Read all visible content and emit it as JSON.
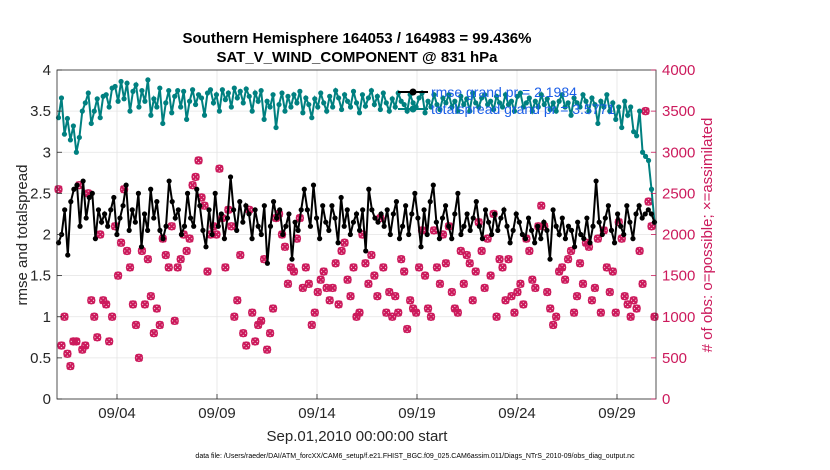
{
  "chart_data": {
    "type": "line",
    "title": [
      "Southern Hemisphere 164053 / 164983 = 99.436%",
      "SAT_V_WIND_COMPONENT @ 831 hPa"
    ],
    "xlabel": "Sep.01,2010 00:00:00 start",
    "ylabel_left": "rmse and totalspread",
    "ylabel_right": "# of obs: o=possible; ×=assimilated",
    "x_ticks": [
      {
        "day": 4,
        "label": "09/04"
      },
      {
        "day": 9,
        "label": "09/09"
      },
      {
        "day": 14,
        "label": "09/14"
      },
      {
        "day": 19,
        "label": "09/19"
      },
      {
        "day": 24,
        "label": "09/24"
      },
      {
        "day": 29,
        "label": "09/29"
      }
    ],
    "xlim": [
      1.0,
      30.95
    ],
    "ylim_left": [
      0,
      4
    ],
    "ylim_right": [
      0,
      4000
    ],
    "yticks_left": [
      "0",
      "0.5",
      "1",
      "1.5",
      "2",
      "2.5",
      "3",
      "3.5",
      "4"
    ],
    "yticks_right": [
      "0",
      "500",
      "1000",
      "1500",
      "2000",
      "2500",
      "3000",
      "3500",
      "4000"
    ],
    "legend": {
      "position": "top-right",
      "entries": [
        "rmse grand pr = 2.1984",
        "totalspread grand pr = 3.5771"
      ]
    },
    "colors": {
      "rmse": "#000000",
      "spread": "#008080",
      "obs": "#cc1a5c",
      "legend_text": "#1a5ee8"
    },
    "footnote": "data file: /Users/raeder/DAI/ATM_forcXX/CAM6_setup/f.e21.FHIST_BGC.f09_025.CAM6assim.011/Diags_NTrS_2010-09/obs_diag_output.nc",
    "series": [
      {
        "name": "rmse",
        "color": "#000000",
        "values": [
          1.9,
          2.0,
          2.3,
          1.75,
          2.4,
          2.55,
          2.6,
          2.1,
          2.65,
          2.2,
          2.45,
          2.5,
          1.95,
          2.3,
          2.15,
          2.25,
          2.1,
          2.3,
          2.45,
          2.0,
          2.2,
          2.35,
          2.6,
          2.05,
          2.3,
          2.15,
          2.5,
          1.85,
          2.25,
          2.05,
          2.55,
          2.2,
          2.4,
          2.05,
          1.95,
          2.1,
          2.65,
          2.4,
          2.2,
          2.3,
          2.0,
          2.1,
          2.5,
          2.2,
          2.1,
          2.55,
          2.35,
          2.05,
          1.85,
          2.3,
          2.0,
          2.5,
          2.1,
          2.25,
          1.95,
          2.2,
          2.7,
          2.3,
          2.05,
          2.4,
          2.15,
          2.35,
          2.25,
          1.95,
          2.3,
          2.1,
          2.0,
          2.35,
          1.65,
          2.1,
          2.4,
          2.2,
          2.3,
          2.0,
          2.1,
          2.25,
          1.7,
          2.15,
          2.05,
          2.3,
          2.55,
          2.3,
          2.1,
          2.6,
          2.2,
          1.95,
          2.35,
          2.15,
          2.05,
          2.35,
          2.2,
          1.9,
          2.45,
          2.1,
          2.3,
          2.0,
          2.15,
          2.25,
          2.05,
          2.3,
          1.8,
          2.55,
          2.3,
          2.2,
          2.15,
          2.25,
          2.1,
          2.3,
          2.0,
          2.25,
          2.4,
          1.95,
          2.1,
          2.35,
          2.0,
          2.25,
          2.5,
          2.2,
          1.85,
          2.3,
          2.0,
          2.4,
          2.6,
          2.15,
          1.95,
          2.2,
          2.35,
          2.1,
          1.95,
          2.25,
          2.5,
          2.0,
          2.1,
          2.25,
          2.05,
          2.2,
          2.4,
          2.1,
          1.95,
          2.3,
          2.15,
          2.0,
          2.25,
          2.05,
          2.2,
          2.3,
          2.1,
          1.9,
          2.05,
          2.25,
          2.15,
          2.0,
          1.95,
          2.2,
          2.05,
          1.9,
          2.1,
          1.95,
          2.15,
          2.05,
          1.7,
          2.3,
          2.1,
          2.0,
          2.2,
          1.95,
          2.1,
          2.05,
          1.85,
          2.15,
          2.0,
          1.95,
          2.2,
          1.9,
          2.1,
          2.65,
          2.15,
          2.0,
          2.2,
          2.35,
          2.05,
          1.9,
          2.25,
          2.1,
          2.0,
          2.35,
          2.15,
          1.95,
          2.25,
          2.35,
          2.2,
          2.25,
          2.3,
          2.25,
          2.15
        ]
      },
      {
        "name": "totalspread",
        "color": "#008080",
        "values": [
          3.42,
          3.66,
          3.22,
          3.41,
          3.15,
          3.32,
          3.0,
          3.18,
          3.5,
          3.6,
          3.72,
          3.35,
          3.5,
          3.65,
          3.42,
          3.68,
          3.7,
          3.55,
          3.78,
          3.8,
          3.62,
          3.86,
          3.65,
          3.84,
          3.5,
          3.74,
          3.82,
          3.55,
          3.75,
          3.62,
          3.88,
          3.45,
          3.65,
          3.55,
          3.78,
          3.35,
          3.6,
          3.75,
          3.48,
          3.68,
          3.75,
          3.55,
          3.74,
          3.4,
          3.62,
          3.76,
          3.58,
          3.7,
          3.66,
          3.45,
          3.72,
          3.76,
          3.6,
          3.7,
          3.5,
          3.76,
          3.64,
          3.72,
          3.55,
          3.78,
          3.66,
          3.74,
          3.6,
          3.77,
          3.68,
          3.5,
          3.72,
          3.62,
          3.75,
          3.4,
          3.62,
          3.55,
          3.7,
          3.3,
          3.58,
          3.72,
          3.5,
          3.68,
          3.55,
          3.7,
          3.6,
          3.74,
          3.48,
          3.66,
          3.58,
          3.42,
          3.65,
          3.55,
          3.72,
          3.6,
          3.5,
          3.68,
          3.55,
          3.75,
          3.66,
          3.52,
          3.7,
          3.62,
          3.55,
          3.74,
          3.6,
          3.48,
          3.7,
          3.56,
          3.66,
          3.75,
          3.58,
          3.68,
          3.52,
          3.72,
          3.6,
          3.5,
          3.65,
          3.55,
          3.72,
          3.62,
          3.58,
          3.5,
          3.7,
          3.6,
          3.55,
          3.66,
          3.72,
          3.48,
          3.62,
          3.55,
          3.7,
          3.58,
          3.52,
          3.66,
          3.6,
          3.7,
          3.55,
          3.62,
          3.5,
          3.68,
          3.58,
          3.65,
          3.5,
          3.72,
          3.6,
          3.55,
          3.66,
          3.7,
          3.58,
          3.62,
          3.52,
          3.68,
          3.6,
          3.55,
          3.7,
          3.58,
          3.62,
          3.5,
          3.68,
          3.72,
          3.55,
          3.6,
          3.66,
          3.5,
          3.62,
          3.55,
          3.7,
          3.58,
          3.65,
          3.52,
          3.6,
          3.5,
          3.62,
          3.7,
          3.55,
          3.6,
          3.45,
          3.66,
          3.6,
          3.55,
          3.7,
          3.62,
          3.5,
          3.66,
          3.58,
          3.35,
          3.62,
          3.55,
          3.7,
          3.5,
          3.6,
          3.4,
          3.55,
          3.3,
          3.62,
          3.45,
          3.55,
          3.25,
          3.2,
          3.5,
          3.0,
          2.95,
          2.9,
          2.55,
          2.15
        ]
      },
      {
        "name": "obs_possible",
        "color": "#cc1a5c",
        "values": [
          2550,
          650,
          1000,
          550,
          400,
          700,
          700,
          2600,
          600,
          650,
          2500,
          1200,
          1000,
          750,
          2000,
          1200,
          1150,
          700,
          1000,
          2100,
          1500,
          1900,
          2550,
          1800,
          1600,
          1150,
          900,
          500,
          1800,
          1150,
          1700,
          1250,
          800,
          1100,
          900,
          1950,
          1750,
          1600,
          2100,
          950,
          1600,
          1700,
          2000,
          1800,
          1950,
          2600,
          2700,
          2900,
          2450,
          2350,
          1550,
          2000,
          2100,
          2000,
          2800,
          2200,
          1600,
          2300,
          2100,
          1000,
          1200,
          1750,
          800,
          650,
          2300,
          1050,
          700,
          900,
          950,
          1700,
          600,
          800,
          1100,
          2200,
          2250,
          2000,
          1850,
          1400,
          1600,
          1550,
          1950,
          2200,
          1350,
          1600,
          1400,
          900,
          1050,
          1300,
          1450,
          1550,
          1350,
          1200,
          1350,
          1650,
          1150,
          1800,
          1900,
          1450,
          1250,
          1600,
          1000,
          1050,
          2000,
          1650,
          1400,
          1750,
          1500,
          1250,
          2200,
          1600,
          1050,
          1300,
          1000,
          1250,
          1050,
          1700,
          1550,
          850,
          1200,
          1100,
          1050,
          1600,
          2050,
          1500,
          1100,
          1000,
          2050,
          1600,
          1400,
          2000,
          1650,
          2100,
          1300,
          1100,
          1050,
          1800,
          1400,
          1750,
          1650,
          1200,
          1550,
          2150,
          1800,
          1350,
          1950,
          1500,
          2250,
          1000,
          1700,
          1600,
          1200,
          1700,
          1250,
          1050,
          1300,
          1400,
          1150,
          1950,
          1800,
          1450,
          1350,
          2100,
          2350,
          2100,
          1300,
          1100,
          900,
          1000,
          1550,
          1600,
          1450,
          1700,
          1800,
          1050,
          1250,
          1650,
          1400,
          1900,
          1850,
          1200,
          1350,
          1950,
          1050,
          2050,
          1600,
          1300,
          1550,
          1050,
          2150,
          1950,
          1250,
          1150,
          1000,
          1200,
          1100,
          1800,
          1400,
          3500,
          2400,
          2100,
          1000
        ]
      },
      {
        "name": "obs_assimilated",
        "color": "#cc1a5c",
        "values": [
          2550,
          650,
          1000,
          550,
          400,
          700,
          700,
          2600,
          600,
          650,
          2500,
          1200,
          1000,
          750,
          2000,
          1200,
          1150,
          700,
          1000,
          2100,
          1500,
          1900,
          2550,
          1800,
          1600,
          1150,
          900,
          500,
          1800,
          1150,
          1700,
          1250,
          800,
          1100,
          900,
          1950,
          1750,
          1600,
          2100,
          950,
          1600,
          1700,
          2000,
          1800,
          1950,
          2600,
          2700,
          2900,
          2450,
          2350,
          1550,
          2000,
          2100,
          2000,
          2800,
          2200,
          1600,
          2300,
          2100,
          1000,
          1200,
          1750,
          800,
          650,
          2300,
          1050,
          700,
          900,
          950,
          1700,
          600,
          800,
          1100,
          2200,
          2250,
          2000,
          1850,
          1400,
          1600,
          1550,
          1950,
          2200,
          1350,
          1600,
          1400,
          900,
          1050,
          1300,
          1450,
          1550,
          1350,
          1200,
          1350,
          1650,
          1150,
          1800,
          1900,
          1450,
          1250,
          1600,
          1000,
          1050,
          2000,
          1650,
          1400,
          1750,
          1500,
          1250,
          2200,
          1600,
          1050,
          1300,
          1000,
          1250,
          1050,
          1700,
          1550,
          850,
          1200,
          1100,
          1050,
          1600,
          2050,
          1500,
          1100,
          1000,
          2050,
          1600,
          1400,
          2000,
          1650,
          2100,
          1300,
          1100,
          1050,
          1800,
          1400,
          1750,
          1650,
          1200,
          1550,
          2150,
          1800,
          1350,
          1950,
          1500,
          2250,
          1000,
          1700,
          1600,
          1200,
          1700,
          1250,
          1050,
          1300,
          1400,
          1150,
          1950,
          1800,
          1450,
          1350,
          2100,
          2350,
          2100,
          1300,
          1100,
          900,
          1000,
          1550,
          1600,
          1450,
          1700,
          1800,
          1050,
          1250,
          1650,
          1400,
          1900,
          1850,
          1200,
          1350,
          1950,
          1050,
          2050,
          1600,
          1300,
          1550,
          1050,
          2150,
          1950,
          1250,
          1150,
          1000,
          1200,
          1100,
          1800,
          1400,
          3500,
          2400,
          2100,
          1000
        ]
      }
    ]
  }
}
